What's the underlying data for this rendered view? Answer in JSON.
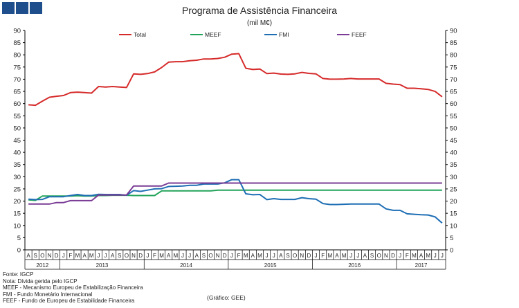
{
  "title": "Programa de Assistência Financeira",
  "subtitle": "(mil M€)",
  "notes": [
    "Fonte: IGCP",
    "Nota: Dívida gerida pelo IGCP",
    "MEEF - Mecanismo Europeu de Estabilização Financeira",
    "FMI - Fundo Monetário Internacional",
    "FEEF - Fundo de Europeu de Estabilidade Financeira"
  ],
  "source_note": "(Gráfico: GEE)",
  "chart_data": {
    "type": "line",
    "title": "Programa de Assistência Financeira",
    "subtitle": "(mil M€)",
    "ylim": [
      0,
      90
    ],
    "y_ticks": [
      0,
      5,
      10,
      15,
      20,
      25,
      30,
      35,
      40,
      45,
      50,
      55,
      60,
      65,
      70,
      75,
      80,
      85,
      90
    ],
    "grid": false,
    "legend": "top",
    "months": [
      "A",
      "S",
      "O",
      "N",
      "D",
      "J",
      "F",
      "M",
      "A",
      "M",
      "J",
      "J",
      "A",
      "S",
      "O",
      "N",
      "D",
      "J",
      "F",
      "M",
      "A",
      "M",
      "J",
      "J",
      "A",
      "S",
      "O",
      "N",
      "D",
      "J",
      "F",
      "M",
      "A",
      "M",
      "J",
      "J",
      "A",
      "S",
      "O",
      "N",
      "D",
      "J",
      "F",
      "M",
      "A",
      "M",
      "J",
      "J",
      "A",
      "S",
      "O",
      "N",
      "D",
      "J",
      "F",
      "M",
      "A",
      "M",
      "J",
      "J"
    ],
    "years": [
      {
        "label": "2012",
        "start": 0,
        "end": 4
      },
      {
        "label": "2013",
        "start": 5,
        "end": 16
      },
      {
        "label": "2014",
        "start": 17,
        "end": 28
      },
      {
        "label": "2015",
        "start": 29,
        "end": 40
      },
      {
        "label": "2016",
        "start": 41,
        "end": 52
      },
      {
        "label": "2017",
        "start": 53,
        "end": 59
      }
    ],
    "series": [
      {
        "name": "Total",
        "color": "#d62a2a",
        "values": [
          59.5,
          59.3,
          61,
          62.6,
          63,
          63.3,
          64.5,
          64.7,
          64.5,
          64.3,
          67,
          66.8,
          67,
          66.8,
          66.6,
          72.2,
          72,
          72.3,
          73,
          74.8,
          77,
          77.2,
          77.2,
          77.6,
          77.8,
          78.3,
          78.3,
          78.5,
          79,
          80.3,
          80.5,
          74.5,
          74,
          74.2,
          72.3,
          72.5,
          72.1,
          72,
          72.2,
          72.8,
          72.4,
          72.2,
          70.3,
          70,
          70,
          70.1,
          70.3,
          70.1,
          70.1,
          70.1,
          70.1,
          68.3,
          68,
          67.8,
          66.3,
          66.3,
          66.1,
          65.8,
          65,
          62.8
        ]
      },
      {
        "name": "MEEF",
        "color": "#22a35a",
        "values": [
          20.5,
          20.3,
          22.1,
          22.1,
          22.1,
          22.1,
          22.1,
          22.2,
          22.1,
          22.1,
          22.3,
          22.3,
          22.4,
          22.4,
          22.4,
          22.3,
          22.3,
          22.3,
          22.3,
          24.2,
          24.2,
          24.2,
          24.2,
          24.2,
          24.2,
          24.2,
          24.2,
          24.5,
          24.5,
          24.5,
          24.5,
          24.5,
          24.5,
          24.5,
          24.5,
          24.5,
          24.5,
          24.5,
          24.5,
          24.5,
          24.5,
          24.5,
          24.5,
          24.5,
          24.5,
          24.5,
          24.5,
          24.5,
          24.5,
          24.5,
          24.5,
          24.5,
          24.5,
          24.5,
          24.5,
          24.5,
          24.5,
          24.5,
          24.5,
          24.5
        ]
      },
      {
        "name": "FMI",
        "color": "#1e6eb4",
        "values": [
          20.8,
          20.6,
          20.7,
          21.8,
          21.8,
          21.8,
          22.3,
          22.7,
          22.3,
          22.3,
          22.8,
          22.7,
          22.7,
          22.7,
          22.4,
          24.3,
          24,
          24.5,
          25,
          25.1,
          26,
          26.1,
          26.2,
          26.5,
          26.5,
          27,
          27,
          27,
          27.5,
          28.8,
          28.8,
          23,
          22.6,
          22.7,
          20.6,
          21,
          20.7,
          20.7,
          20.7,
          21.4,
          21,
          20.8,
          19,
          18.6,
          18.6,
          18.7,
          18.8,
          18.8,
          18.8,
          18.8,
          18.8,
          16.8,
          16.2,
          16.2,
          14.8,
          14.6,
          14.4,
          14.3,
          13.5,
          11
        ]
      },
      {
        "name": "FEEF",
        "color": "#7a3c96",
        "values": [
          18.8,
          18.8,
          18.8,
          18.8,
          19.4,
          19.4,
          20.2,
          20.2,
          20.2,
          20.2,
          22.5,
          22.5,
          22.5,
          22.5,
          22.5,
          26.2,
          26.2,
          26.2,
          26.2,
          26.2,
          27.4,
          27.4,
          27.4,
          27.4,
          27.4,
          27.4,
          27.4,
          27.4,
          27.4,
          27.4,
          27.4,
          27.4,
          27.4,
          27.4,
          27.4,
          27.4,
          27.4,
          27.4,
          27.4,
          27.4,
          27.4,
          27.4,
          27.4,
          27.4,
          27.4,
          27.4,
          27.4,
          27.4,
          27.4,
          27.4,
          27.4,
          27.4,
          27.4,
          27.4,
          27.4,
          27.4,
          27.4,
          27.4,
          27.4,
          27.4
        ]
      }
    ]
  }
}
